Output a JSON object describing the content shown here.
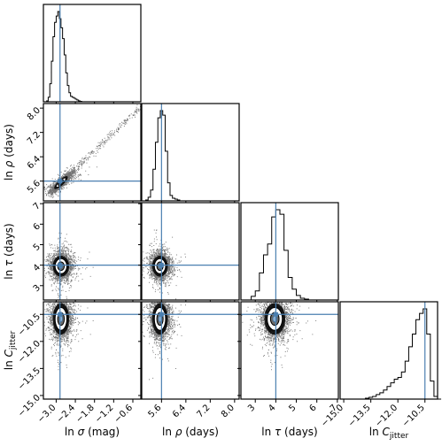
{
  "chart_data": {
    "type": "scatter",
    "subtype": "corner-plot",
    "params": [
      {
        "key": "ln_sigma",
        "label": "ln σ (mag)",
        "range": [
          -3.4,
          -0.35
        ],
        "ticks": [
          -3.0,
          -2.4,
          -1.8,
          -1.2,
          -0.6
        ],
        "tick_labels": [
          "-3.0",
          "-2.4",
          "-1.8",
          "-1.2",
          "-0.6"
        ],
        "truth": -2.88,
        "mean": -2.85,
        "sd": 0.16
      },
      {
        "key": "ln_rho",
        "label": "ln ρ (days)",
        "range": [
          4.95,
          8.15
        ],
        "ticks": [
          5.6,
          6.4,
          7.2,
          8.0
        ],
        "tick_labels": [
          "5.6",
          "6.4",
          "7.2",
          "8.0"
        ],
        "truth": 5.6,
        "mean": 5.55,
        "sd": 0.16
      },
      {
        "key": "ln_tau",
        "label": "ln τ (days)",
        "range": [
          2.3,
          7.05
        ],
        "ticks": [
          3,
          4,
          5,
          6,
          7
        ],
        "tick_labels": [
          "3",
          "4",
          "5",
          "6",
          "7"
        ],
        "truth": 4.0,
        "mean": 3.95,
        "sd": 0.32
      },
      {
        "key": "ln_cjitter",
        "label": "ln C",
        "label_sub": "jitter",
        "range": [
          -15.2,
          -9.8
        ],
        "ticks": [
          -15.0,
          -13.5,
          -12.0,
          -10.5
        ],
        "tick_labels": [
          "-15.0",
          "-13.5",
          "-12.0",
          "-10.5"
        ],
        "truth": -10.5,
        "mean": -10.75,
        "sd": 0.55
      }
    ],
    "marginals": [
      {
        "param": "ln_sigma",
        "bins": [
          -3.35,
          -3.3,
          -3.25,
          -3.2,
          -3.15,
          -3.1,
          -3.05,
          -3.0,
          -2.95,
          -2.9,
          -2.85,
          -2.8,
          -2.75,
          -2.7,
          -2.65,
          -2.6,
          -2.55,
          -2.5,
          -2.45,
          -2.4,
          -2.35,
          -2.3,
          -2.25,
          -2.2
        ],
        "counts": [
          0.0,
          0.01,
          0.05,
          0.2,
          0.45,
          0.72,
          0.88,
          0.95,
          1.0,
          0.92,
          0.82,
          0.7,
          0.52,
          0.32,
          0.18,
          0.1,
          0.06,
          0.05,
          0.04,
          0.03,
          0.02,
          0.01,
          0.005,
          0.0
        ]
      },
      {
        "param": "ln_rho",
        "bins": [
          5.0,
          5.08,
          5.16,
          5.24,
          5.32,
          5.4,
          5.48,
          5.56,
          5.64,
          5.72,
          5.8,
          5.88,
          5.96,
          6.04,
          6.12,
          6.2
        ],
        "counts": [
          0.0,
          0.01,
          0.04,
          0.12,
          0.35,
          0.65,
          0.92,
          1.0,
          0.95,
          0.55,
          0.2,
          0.06,
          0.03,
          0.02,
          0.01,
          0.0
        ]
      },
      {
        "param": "ln_tau",
        "bins": [
          2.6,
          2.8,
          3.0,
          3.2,
          3.4,
          3.6,
          3.8,
          4.0,
          4.2,
          4.4,
          4.6,
          4.8,
          5.0,
          5.2,
          5.4,
          5.6
        ],
        "counts": [
          0.0,
          0.04,
          0.1,
          0.3,
          0.5,
          0.62,
          0.92,
          1.0,
          0.95,
          0.55,
          0.25,
          0.12,
          0.05,
          0.02,
          0.01,
          0.0
        ]
      },
      {
        "param": "ln_cjitter",
        "bins": [
          -14.0,
          -13.8,
          -13.6,
          -13.4,
          -13.2,
          -13.0,
          -12.8,
          -12.6,
          -12.4,
          -12.2,
          -12.0,
          -11.8,
          -11.6,
          -11.4,
          -11.2,
          -11.0,
          -10.8,
          -10.6,
          -10.4,
          -10.2,
          -10.0,
          -9.8
        ],
        "counts": [
          0.0,
          0.01,
          0.02,
          0.03,
          0.05,
          0.07,
          0.1,
          0.14,
          0.18,
          0.22,
          0.24,
          0.3,
          0.42,
          0.58,
          0.72,
          0.88,
          0.95,
          1.0,
          0.72,
          0.2,
          0.03,
          0.0
        ]
      }
    ],
    "pair_correlations": {
      "ln_rho|ln_sigma": 0.9
    },
    "truth_line_color": "#4a7fb0",
    "point_color": "#000000",
    "contour_fill": "#ffffff",
    "grid": false
  }
}
